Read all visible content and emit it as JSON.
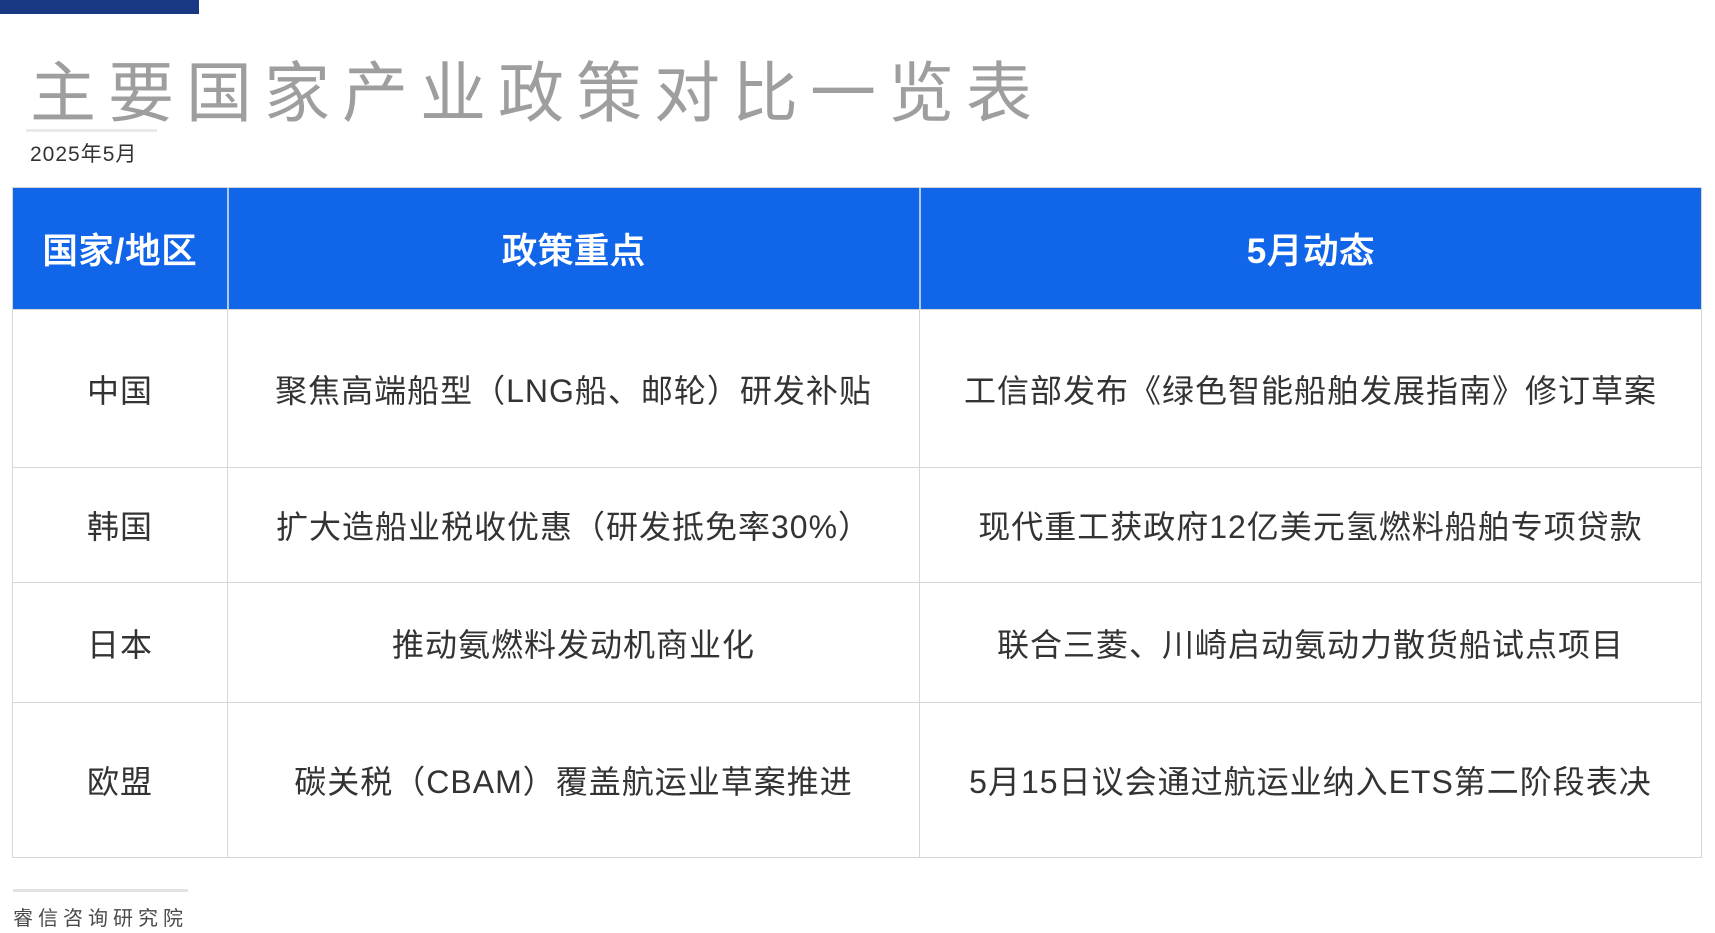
{
  "colors": {
    "accent_bar": "#183883",
    "header_bg": "#1165e8",
    "header_text": "#ffffff",
    "title_text": "#9e9e9e",
    "body_text": "#333333",
    "border": "#d6d6d6"
  },
  "header": {
    "title": "主要国家产业政策对比一览表",
    "date": "2025年5月"
  },
  "table": {
    "columns": [
      "国家/地区",
      "政策重点",
      "5月动态"
    ],
    "rows": [
      {
        "region": "中国",
        "policy": "聚焦高端船型（LNG船、邮轮）研发补贴",
        "update": "工信部发布《绿色智能船舶发展指南》修订草案"
      },
      {
        "region": "韩国",
        "policy": "扩大造船业税收优惠（研发抵免率30%）",
        "update": "现代重工获政府12亿美元氢燃料船舶专项贷款"
      },
      {
        "region": "日本",
        "policy": "推动氨燃料发动机商业化",
        "update": "联合三菱、川崎启动氨动力散货船试点项目"
      },
      {
        "region": "欧盟",
        "policy": "碳关税（CBAM）覆盖航运业草案推进",
        "update": "5月15日议会通过航运业纳入ETS第二阶段表决"
      }
    ]
  },
  "footer": {
    "source": "睿信咨询研究院"
  }
}
